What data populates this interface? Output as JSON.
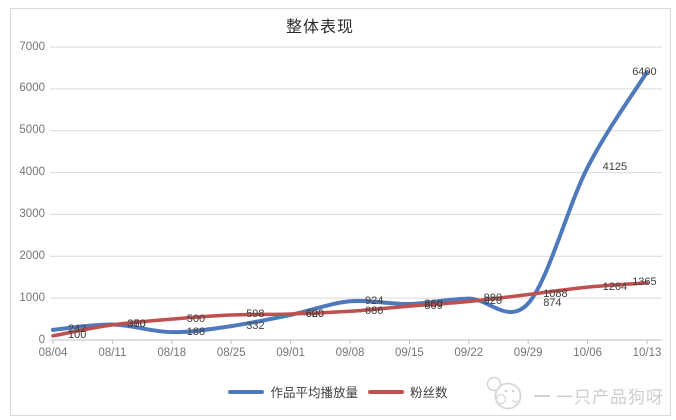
{
  "title": "整体表现",
  "chart_data": {
    "type": "line",
    "title": "整体表现",
    "categories": [
      "08/04",
      "08/11",
      "08/18",
      "08/25",
      "09/01",
      "09/08",
      "09/15",
      "09/22",
      "09/29",
      "10/06",
      "10/13"
    ],
    "series": [
      {
        "name": "作品平均播放量",
        "color": "#4E79BC",
        "values": [
          242,
          370,
          188,
          332,
          600,
          924,
          860,
          990,
          874,
          4125,
          6400
        ]
      },
      {
        "name": "粉丝数",
        "color": "#C0504D",
        "values": [
          100,
          360,
          500,
          598,
          620,
          686,
          809,
          920,
          1088,
          1264,
          1365
        ]
      }
    ],
    "ylim": [
      0,
      7000
    ],
    "ytick_step": 1000,
    "y_tick_labels": [
      "0",
      "1000",
      "2000",
      "3000",
      "4000",
      "5000",
      "6000",
      "7000"
    ],
    "grid": "horizontal",
    "legend_position": "bottom",
    "smooth": true,
    "data_labels": true
  },
  "footer": {
    "dash": "—",
    "watermark_text": "一只产品狗呀",
    "logo_icon": "dog-doodle-icon"
  },
  "colors": {
    "gridline": "#D9D9D9",
    "axis_line": "#BFBFBF",
    "axis_text": "#757575",
    "data_label_text": "#3F3F3F",
    "frame_border": "#D9D9D9",
    "watermark": "#CDCDCD"
  }
}
